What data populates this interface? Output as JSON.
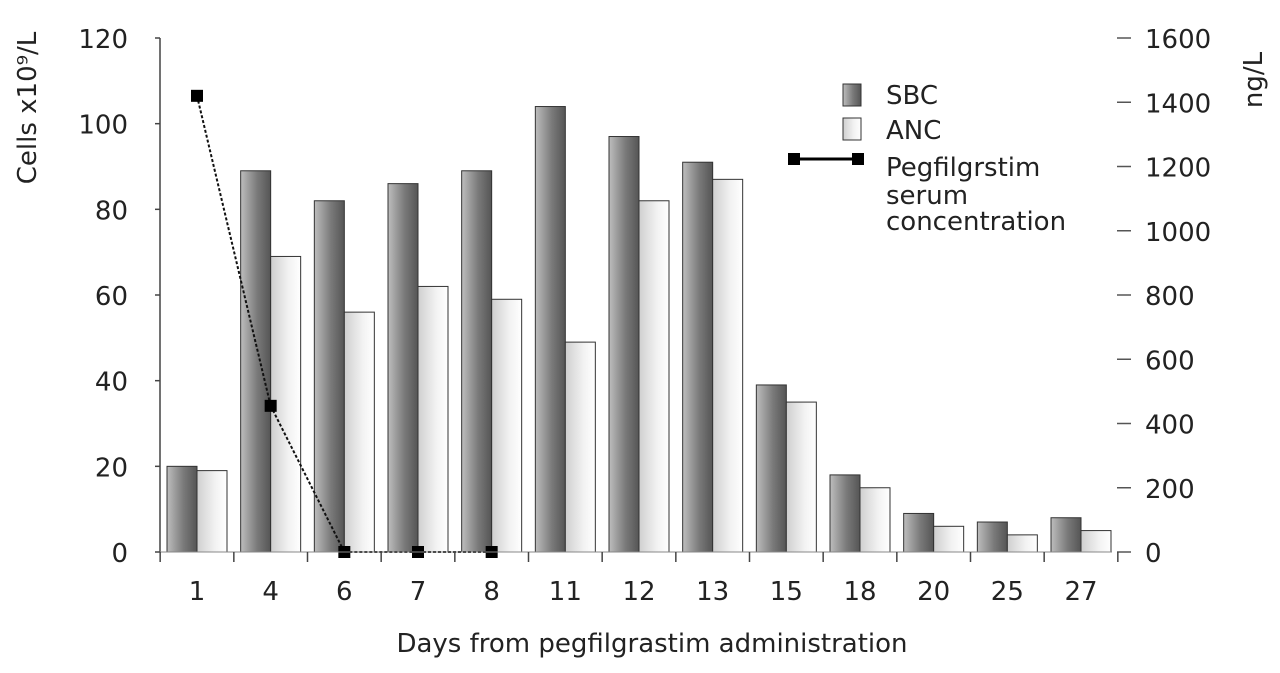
{
  "chart_data": {
    "type": "bar",
    "xlabel": "Days from pegfilgrastim administration",
    "ylabel_left": "Cells x10⁹/L",
    "ylabel_right": "ng/L",
    "categories": [
      "1",
      "4",
      "6",
      "7",
      "8",
      "11",
      "12",
      "13",
      "15",
      "18",
      "20",
      "25",
      "27"
    ],
    "ylim_left": [
      0,
      120
    ],
    "yticks_left": [
      0,
      20,
      40,
      60,
      80,
      100,
      120
    ],
    "ylim_right": [
      0,
      1600
    ],
    "yticks_right": [
      0,
      200,
      400,
      600,
      800,
      1000,
      1200,
      1400,
      1600
    ],
    "series": [
      {
        "name": "SBC",
        "axis": "left",
        "kind": "bar",
        "values": [
          20,
          89,
          82,
          86,
          89,
          104,
          97,
          91,
          39,
          18,
          9,
          7,
          8
        ]
      },
      {
        "name": "ANC",
        "axis": "left",
        "kind": "bar",
        "values": [
          19,
          69,
          56,
          62,
          59,
          49,
          82,
          87,
          35,
          15,
          6,
          4,
          5
        ]
      },
      {
        "name": "Pegfilgrstim serum concentration",
        "axis": "right",
        "kind": "line",
        "points": [
          {
            "category": "1",
            "value": 1420
          },
          {
            "category": "4",
            "value": 455
          },
          {
            "category": "6",
            "value": 0
          },
          {
            "category": "7",
            "value": 0
          },
          {
            "category": "8",
            "value": 0
          }
        ]
      }
    ],
    "legend": {
      "position": "top-right",
      "entries": [
        {
          "label": "SBC",
          "lines": [
            "SBC"
          ]
        },
        {
          "label": "ANC",
          "lines": [
            "ANC"
          ]
        },
        {
          "label": "Pegfilgrstim serum concentration",
          "lines": [
            "Pegfilgrstim",
            "serum",
            "concentration"
          ]
        }
      ]
    },
    "colors": {
      "sbc_dark": "#5a5a5a",
      "sbc_light": "#b8b8b8",
      "anc_dark": "#c8c8c8",
      "anc_light": "#ffffff",
      "line": "#000000",
      "axis": "#333333"
    }
  }
}
